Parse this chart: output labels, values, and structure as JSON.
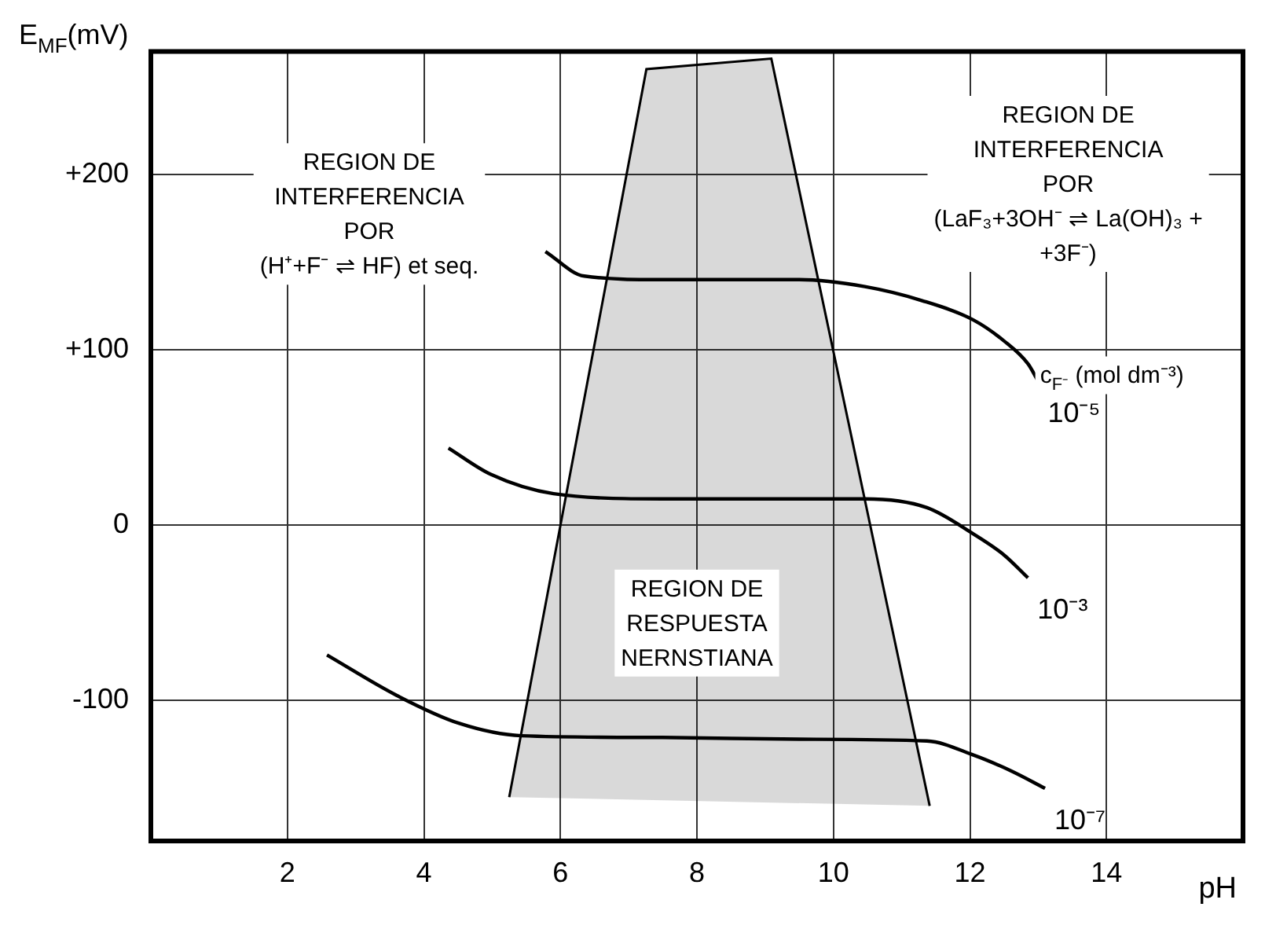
{
  "chart_data": {
    "type": "line",
    "ylabel": "E$_{MF}$(mV)",
    "xlabel": "pH",
    "legend_title": "c$_{F⁻}$ (mol dm⁻³)",
    "xlim": [
      0,
      16
    ],
    "xticks": [
      2,
      4,
      6,
      8,
      10,
      12,
      14
    ],
    "ylim": [
      -180,
      270
    ],
    "yticks": [
      {
        "value": 200,
        "label": "+200"
      },
      {
        "value": 100,
        "label": "+100"
      },
      0,
      -100
    ],
    "grid": true,
    "legend": false,
    "marker": "none",
    "line_style": "solid",
    "series": [
      {
        "name": "10⁻⁵",
        "color": "#000000",
        "x": [
          5.78,
          6.35,
          7.5,
          9.5,
          10.46,
          11.3,
          12.05,
          12.5,
          12.85,
          13.0
        ],
        "values": [
          156,
          142,
          140,
          140,
          136,
          128,
          117,
          105,
          92,
          82
        ]
      },
      {
        "name": "10⁻³",
        "color": "#000000",
        "x": [
          4.36,
          4.98,
          5.9,
          7.5,
          9.5,
          10.46,
          11.37,
          12.05,
          12.5,
          12.85
        ],
        "values": [
          44,
          29,
          18,
          15,
          15,
          15,
          10,
          -5,
          -17,
          -30
        ]
      },
      {
        "name": "10⁻⁷",
        "color": "#000000",
        "x": [
          2.58,
          3.6,
          4.52,
          5.43,
          7.5,
          9.5,
          11.37,
          12.05,
          12.6,
          13.1
        ],
        "values": [
          -74,
          -97,
          -113,
          -120,
          -121,
          -122,
          -123,
          -131,
          -140,
          -150
        ]
      },
      {
        "type": "area",
        "color": "#000000",
        "x": [
          5.25,
          7.26,
          9.09,
          11.41
        ],
        "values": [
          -155,
          260,
          266,
          -160
        ]
      }
    ],
    "annotations": [
      "REGION DE\nINTERFERENCIA\nPOR\n(H⁺+F⁻ ⇌ HF) et seq.",
      "REGION DE\nINTERFERENCIA\nPOR\n(LaF₃+3OH⁻ ⇌ La(OH)₃ +\n+3F⁻)",
      "REGION DE\nRESPUESTA\nNERNSTIANA"
    ]
  }
}
